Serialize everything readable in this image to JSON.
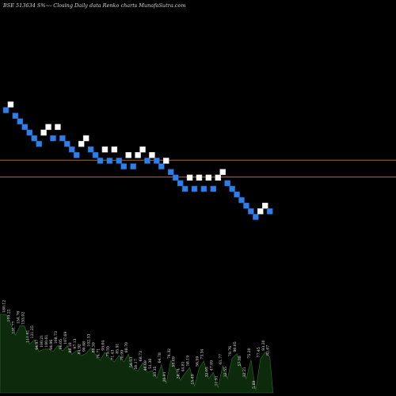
{
  "header": {
    "title": "BSE 513634  S%~- Closing Daily data  Renko  charts MunafaSutra.com"
  },
  "colors": {
    "background": "#000000",
    "up_brick": "#ffffff",
    "down_brick": "#2f7fe8",
    "reference_line": "#b4651f",
    "volume_fill": "#0d2a0d",
    "volume_stroke": "#2f6e2f"
  },
  "chart_data": {
    "type": "renko",
    "title": "BSE 513634  S%~- Closing Daily data  Renko  charts MunafaSutra.com",
    "value_axis": [
      0,
      50
    ],
    "bricks": [
      {
        "dir": "down",
        "level": 44.5
      },
      {
        "dir": "up",
        "level": 45.5
      },
      {
        "dir": "down",
        "level": 43.5
      },
      {
        "dir": "down",
        "level": 42.5
      },
      {
        "dir": "down",
        "level": 41.5
      },
      {
        "dir": "down",
        "level": 40.5
      },
      {
        "dir": "down",
        "level": 39.5
      },
      {
        "dir": "down",
        "level": 38.5
      },
      {
        "dir": "up",
        "level": 40.5
      },
      {
        "dir": "up",
        "level": 41.5
      },
      {
        "dir": "down",
        "level": 39.5
      },
      {
        "dir": "up",
        "level": 41.5
      },
      {
        "dir": "down",
        "level": 39.5
      },
      {
        "dir": "down",
        "level": 38.5
      },
      {
        "dir": "down",
        "level": 37.5
      },
      {
        "dir": "down",
        "level": 36.5
      },
      {
        "dir": "up",
        "level": 38.5
      },
      {
        "dir": "up",
        "level": 39.5
      },
      {
        "dir": "down",
        "level": 37.5
      },
      {
        "dir": "down",
        "level": 36.5
      },
      {
        "dir": "down",
        "level": 35.5
      },
      {
        "dir": "up",
        "level": 37.5
      },
      {
        "dir": "down",
        "level": 35.5
      },
      {
        "dir": "up",
        "level": 37.5
      },
      {
        "dir": "down",
        "level": 35.5
      },
      {
        "dir": "down",
        "level": 34.5
      },
      {
        "dir": "up",
        "level": 36.5
      },
      {
        "dir": "down",
        "level": 34.5
      },
      {
        "dir": "up",
        "level": 36.5
      },
      {
        "dir": "up",
        "level": 37.5
      },
      {
        "dir": "down",
        "level": 35.5
      },
      {
        "dir": "up",
        "level": 36.5
      },
      {
        "dir": "down",
        "level": 35.5
      },
      {
        "dir": "down",
        "level": 34.5
      },
      {
        "dir": "up",
        "level": 35.5
      },
      {
        "dir": "down",
        "level": 33.5
      },
      {
        "dir": "down",
        "level": 32.5
      },
      {
        "dir": "down",
        "level": 31.5
      },
      {
        "dir": "down",
        "level": 30.5
      },
      {
        "dir": "up",
        "level": 32.5
      },
      {
        "dir": "down",
        "level": 30.5
      },
      {
        "dir": "up",
        "level": 32.5
      },
      {
        "dir": "down",
        "level": 30.5
      },
      {
        "dir": "up",
        "level": 32.5
      },
      {
        "dir": "down",
        "level": 30.5
      },
      {
        "dir": "up",
        "level": 32.5
      },
      {
        "dir": "up",
        "level": 33.5
      },
      {
        "dir": "down",
        "level": 31.5
      },
      {
        "dir": "down",
        "level": 30.5
      },
      {
        "dir": "down",
        "level": 29.5
      },
      {
        "dir": "down",
        "level": 28.5
      },
      {
        "dir": "down",
        "level": 27.5
      },
      {
        "dir": "down",
        "level": 26.5
      },
      {
        "dir": "down",
        "level": 25.5
      },
      {
        "dir": "up",
        "level": 26.5
      },
      {
        "dir": "up",
        "level": 27.5
      },
      {
        "dir": "down",
        "level": 26.5
      }
    ],
    "reference_lines": [
      35.6,
      32.6
    ],
    "volume_labels": [
      "180.12",
      "159.22",
      "131.77",
      "154.76",
      "153.02",
      "111.61",
      "121.25",
      "94.97",
      "100.21",
      "100.61",
      "94.96",
      "108.73",
      "96.05",
      "107.69",
      "88.18",
      "97.13",
      "84.92",
      "90.68",
      "102.33",
      "88.39",
      "74.71",
      "93.04",
      "79.55",
      "71.43",
      "85.91",
      "70.99",
      "88.70",
      "54.53",
      "50.17",
      "68.73",
      "46.69",
      "51.30",
      "33.35",
      "64.78",
      "20.91",
      "74.32",
      "55.69",
      "28.74",
      "44.81",
      "58.19",
      "15.49",
      "56.59",
      "73.34",
      "32.05",
      "47.09",
      "11.91",
      "61.77",
      "32.55",
      "79.76",
      "90.05",
      "57.38",
      "32.21",
      "75.20",
      "5.89",
      "77.45",
      "93.20",
      "82.07"
    ]
  }
}
